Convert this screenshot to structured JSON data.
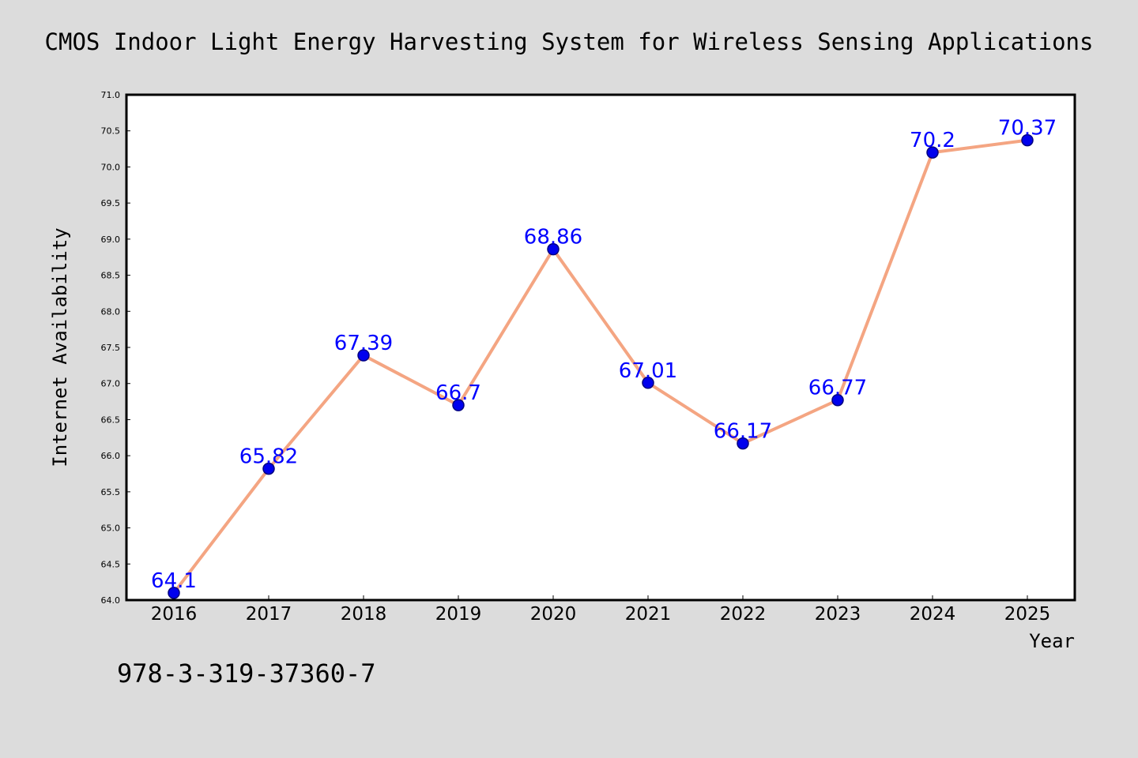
{
  "chart_data": {
    "type": "line",
    "title": "CMOS Indoor Light Energy Harvesting System for Wireless Sensing Applications",
    "xlabel": "Year",
    "ylabel": "Internet Availability",
    "categories": [
      "2016",
      "2017",
      "2018",
      "2019",
      "2020",
      "2021",
      "2022",
      "2023",
      "2024",
      "2025"
    ],
    "series": [
      {
        "values": [
          64.1,
          65.82,
          67.39,
          66.7,
          68.86,
          67.01,
          66.17,
          66.77,
          70.2,
          70.37
        ],
        "labels": [
          "64.1",
          "65.82",
          "67.39",
          "66.7",
          "68.86",
          "67.01",
          "66.17",
          "66.77",
          "70.2",
          "70.37"
        ]
      }
    ],
    "ylim": [
      64.0,
      71.0
    ],
    "yticks": [
      "64.0",
      "64.5",
      "65.0",
      "65.5",
      "66.0",
      "66.5",
      "67.0",
      "67.5",
      "68.0",
      "68.5",
      "69.0",
      "69.5",
      "70.0",
      "70.5",
      "71.0"
    ],
    "grid": false,
    "colors": {
      "line": "#f4a582",
      "marker": "#0000ee",
      "marker_edge": "#000080",
      "label": "#0000ff",
      "background": "#dcdcdc",
      "plot_background": "#ffffff"
    }
  },
  "footer": {
    "text": "978-3-319-37360-7"
  }
}
